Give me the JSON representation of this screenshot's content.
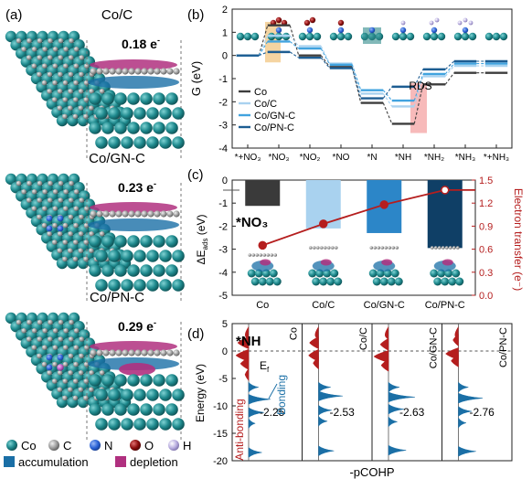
{
  "panel_a": {
    "tag": "(a)",
    "models": [
      {
        "name": "Co/C",
        "charge": "0.18 e",
        "charge_sup": "-",
        "n_atoms": 0,
        "p_atoms": 0
      },
      {
        "name": "Co/GN-C",
        "charge": "0.23 e",
        "charge_sup": "-",
        "n_atoms": 4,
        "p_atoms": 0
      },
      {
        "name": "Co/PN-C",
        "charge": "0.29 e",
        "charge_sup": "-",
        "n_atoms": 3,
        "p_atoms": 1
      }
    ],
    "legend": {
      "atoms": [
        {
          "label": "Co",
          "color": "#1f8a8e"
        },
        {
          "label": "C",
          "color": "#8a8a8a"
        },
        {
          "label": "N",
          "color": "#2a62d6"
        },
        {
          "label": "O",
          "color": "#8b0d0d"
        },
        {
          "label": "H",
          "color": "#b9aee0"
        }
      ],
      "accumulation": {
        "label": "accumulation",
        "color": "#1a6fa6"
      },
      "depletion": {
        "label": "depletion",
        "color": "#b0307f"
      }
    }
  },
  "chart_data": [
    {
      "id": "b",
      "type": "line",
      "tag": "(b)",
      "ylabel": "G (eV)",
      "ylim": [
        -4,
        2
      ],
      "yticks": [
        -4,
        -3,
        -2,
        -1,
        0,
        1,
        2
      ],
      "categories": [
        "*+NO₃",
        "*NO₃",
        "*NO₂",
        "*NO",
        "*N",
        "*NH",
        "*NH₂",
        "*NH₃",
        "*+NH₃"
      ],
      "annotation": "RDS",
      "series": [
        {
          "name": "Co",
          "color": "#3d3d3d",
          "values": [
            0,
            1.3,
            0.0,
            -0.5,
            -2.05,
            -2.95,
            -1.25,
            -0.75,
            -0.75
          ]
        },
        {
          "name": "Co/C",
          "color": "#a9d2ef",
          "values": [
            0,
            0.85,
            0.4,
            -0.35,
            -1.65,
            -2.2,
            -0.9,
            -0.45,
            -0.45
          ]
        },
        {
          "name": "Co/GN-C",
          "color": "#41a3df",
          "values": [
            0,
            0.6,
            0.3,
            -0.4,
            -1.5,
            -1.95,
            -0.8,
            -0.35,
            -0.35
          ]
        },
        {
          "name": "Co/PN-C",
          "color": "#1d5d92",
          "values": [
            0,
            0.15,
            -0.1,
            -0.55,
            -1.85,
            -1.35,
            -0.6,
            -0.25,
            -0.25
          ]
        }
      ],
      "legend_position": "bottom-left",
      "grid": false
    },
    {
      "id": "c",
      "type": "bar",
      "tag": "(c)",
      "ylabel": "ΔE",
      "ylabel_sub": "ads",
      "ylabel_unit": " (eV)",
      "ylim": [
        -5,
        0
      ],
      "yticks": [
        -5,
        -4,
        -3,
        -2,
        -1,
        0
      ],
      "y2label": "Electron transfer (e⁻)",
      "y2lim": [
        0,
        1.5
      ],
      "y2ticks": [
        0.0,
        0.3,
        0.6,
        0.9,
        1.2,
        1.5
      ],
      "categories": [
        "Co",
        "Co/C",
        "Co/GN-C",
        "Co/PN-C"
      ],
      "inset_label": "*NO₃",
      "series": [
        {
          "name": "ΔEads",
          "type": "bar",
          "colors": [
            "#3a3a3a",
            "#a9d2ef",
            "#2c86c8",
            "#0f3f66"
          ],
          "values": [
            -1.12,
            -2.1,
            -2.3,
            -2.95
          ]
        },
        {
          "name": "Electron transfer",
          "type": "line",
          "color": "#b51e1e",
          "axis": "right",
          "values": [
            0.65,
            0.93,
            1.18,
            1.37
          ]
        }
      ],
      "grid": false
    },
    {
      "id": "d",
      "type": "area",
      "tag": "(d)",
      "ylabel": "Energy (eV)",
      "xlabel": "-pCOHP",
      "ylim": [
        -20,
        5
      ],
      "yticks": [
        -20,
        -15,
        -10,
        -5,
        0,
        5
      ],
      "adsorbate": "*NH",
      "fermi_label": "E",
      "fermi_sub": "f",
      "bonding_label": "Bonding",
      "antibonding_label": "Anti-bonding",
      "panels": [
        {
          "name": "Co",
          "icohp": "-2.25",
          "bonding_peaks": [
            [
              -6.6,
              4.5
            ],
            [
              -8.8,
              10
            ],
            [
              -11.2,
              7
            ],
            [
              -13.2,
              3
            ],
            [
              -18.5,
              6
            ]
          ],
          "anti_peaks": [
            [
              1.5,
              6
            ],
            [
              -0.8,
              7
            ],
            [
              -2.3,
              4.5
            ],
            [
              -4.3,
              2
            ]
          ]
        },
        {
          "name": "Co/C",
          "icohp": "-2.53",
          "bonding_peaks": [
            [
              -6.6,
              5.5
            ],
            [
              -8.2,
              11
            ],
            [
              -10.8,
              6
            ],
            [
              -12.8,
              4
            ],
            [
              -18.2,
              7
            ]
          ],
          "anti_peaks": [
            [
              1.5,
              5
            ],
            [
              -0.8,
              5.5
            ],
            [
              -2.2,
              3
            ]
          ]
        },
        {
          "name": "Co/GN-C",
          "icohp": "-2.63",
          "bonding_peaks": [
            [
              -6.6,
              5
            ],
            [
              -8.4,
              12
            ],
            [
              -10.6,
              7
            ],
            [
              -12.9,
              4
            ],
            [
              -18.1,
              8
            ]
          ],
          "anti_peaks": [
            [
              1.2,
              4.5
            ],
            [
              -1.0,
              8
            ],
            [
              -2.6,
              4
            ]
          ]
        },
        {
          "name": "Co/PN-C",
          "icohp": "-2.76",
          "bonding_peaks": [
            [
              -6.6,
              4.5
            ],
            [
              -8.6,
              11
            ],
            [
              -11.0,
              6
            ],
            [
              -13.1,
              3.5
            ],
            [
              -18.3,
              8
            ]
          ],
          "anti_peaks": [
            [
              2.0,
              3
            ],
            [
              -0.5,
              7
            ],
            [
              -1.8,
              4
            ]
          ]
        }
      ]
    }
  ]
}
